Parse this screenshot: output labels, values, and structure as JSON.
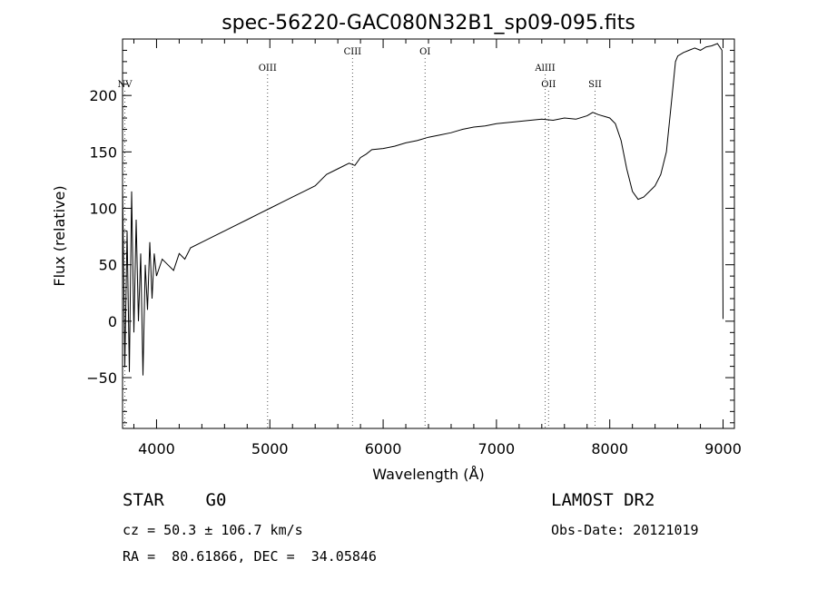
{
  "chart_data": {
    "type": "line",
    "title": "spec-56220-GAC080N32B1_sp09-095.fits",
    "xlabel": "Wavelength (Å)",
    "ylabel": "Flux (relative)",
    "xlim": [
      3700,
      9100
    ],
    "ylim": [
      -95,
      250
    ],
    "xticks": [
      4000,
      5000,
      6000,
      7000,
      8000,
      9000
    ],
    "yticks": [
      -50,
      0,
      50,
      100,
      150,
      200
    ],
    "grid": false,
    "series": [
      {
        "x": [
          3700,
          3720,
          3740,
          3760,
          3780,
          3800,
          3820,
          3840,
          3860,
          3880,
          3900,
          3920,
          3940,
          3960,
          3980,
          4000,
          4050,
          4100,
          4150,
          4200,
          4250,
          4300,
          4400,
          4500,
          4600,
          4700,
          4800,
          4900,
          5000,
          5100,
          5200,
          5300,
          5400,
          5500,
          5600,
          5700,
          5750,
          5800,
          5850,
          5900,
          6000,
          6100,
          6200,
          6300,
          6400,
          6500,
          6600,
          6700,
          6800,
          6900,
          7000,
          7100,
          7200,
          7300,
          7400,
          7500,
          7600,
          7700,
          7800,
          7850,
          7900,
          8000,
          8050,
          8100,
          8150,
          8200,
          8250,
          8300,
          8350,
          8400,
          8450,
          8500,
          8550,
          8580,
          8600,
          8650,
          8700,
          8750,
          8800,
          8850,
          8900,
          8950,
          8990,
          9000
        ],
        "y": [
          120,
          -40,
          80,
          -45,
          115,
          -10,
          90,
          0,
          60,
          -48,
          50,
          10,
          70,
          20,
          60,
          40,
          55,
          50,
          45,
          60,
          55,
          65,
          70,
          75,
          80,
          85,
          90,
          95,
          100,
          105,
          110,
          115,
          120,
          130,
          135,
          140,
          138,
          145,
          148,
          152,
          153,
          155,
          158,
          160,
          163,
          165,
          167,
          170,
          172,
          173,
          175,
          176,
          177,
          178,
          179,
          178,
          180,
          179,
          182,
          185,
          183,
          180,
          175,
          160,
          135,
          115,
          108,
          110,
          115,
          120,
          130,
          150,
          200,
          230,
          235,
          238,
          240,
          242,
          240,
          243,
          244,
          246,
          240,
          2
        ]
      }
    ],
    "lines": [
      {
        "label": "NV",
        "x": 3720,
        "row": 3
      },
      {
        "label": "OIII",
        "x": 4980,
        "row": 2
      },
      {
        "label": "CIII",
        "x": 5730,
        "row": 1
      },
      {
        "label": "OI",
        "x": 6370,
        "row": 1
      },
      {
        "label": "AlIII",
        "x": 7430,
        "row": 2
      },
      {
        "label": "OII",
        "x": 7460,
        "row": 3
      },
      {
        "label": "SII",
        "x": 7870,
        "row": 3
      }
    ]
  },
  "info": {
    "class": "STAR    G0",
    "survey": "LAMOST DR2",
    "cz": "cz = 50.3 ± 106.7 km/s",
    "obs_date": "Obs-Date: 20121019",
    "coords": "RA =  80.61866, DEC =  34.05846"
  }
}
